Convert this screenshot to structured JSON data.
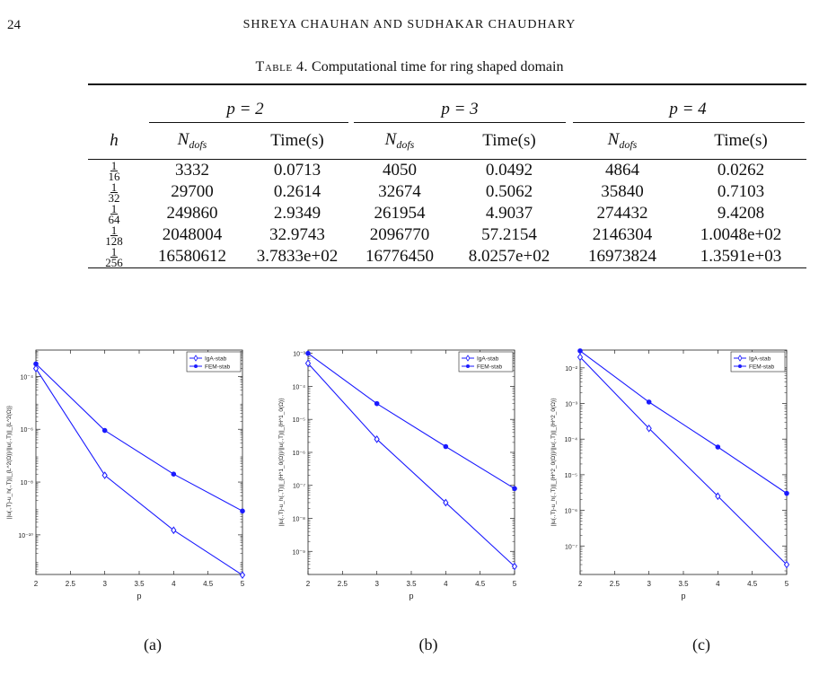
{
  "page": {
    "number": "24",
    "running_header": "SHREYA CHAUHAN AND SUDHAKAR CHAUDHARY"
  },
  "table": {
    "caption_label": "Table 4.",
    "caption_text": "Computational time for ring shaped domain",
    "row_header": "h",
    "groups": [
      "p = 2",
      "p = 3",
      "p = 4"
    ],
    "col_ndofs_main": "N",
    "col_ndofs_sub": "dofs",
    "col_time": "Time(s)",
    "rows": [
      {
        "h_num": "1",
        "h_den": "16",
        "cells": [
          "3332",
          "0.0713",
          "4050",
          "0.0492",
          "4864",
          "0.0262"
        ]
      },
      {
        "h_num": "1",
        "h_den": "32",
        "cells": [
          "29700",
          "0.2614",
          "32674",
          "0.5062",
          "35840",
          "0.7103"
        ]
      },
      {
        "h_num": "1",
        "h_den": "64",
        "cells": [
          "249860",
          "2.9349",
          "261954",
          "4.9037",
          "274432",
          "9.4208"
        ]
      },
      {
        "h_num": "1",
        "h_den": "128",
        "cells": [
          "2048004",
          "32.9743",
          "2096770",
          "57.2154",
          "2146304",
          "1.0048e+02"
        ]
      },
      {
        "h_num": "1",
        "h_den": "256",
        "cells": [
          "16580612",
          "3.7833e+02",
          "16776450",
          "8.0257e+02",
          "16973824",
          "1.3591e+03"
        ]
      }
    ]
  },
  "chart_data": [
    {
      "type": "line",
      "sublabel": "(a)",
      "xlabel": "p",
      "ylabel": "||u(.,T)-u_h(.,T)||_{L^2(Ω)}/||u(.,T)||_{L^2(Ω)}",
      "yscale": "log",
      "xlim": [
        2,
        5
      ],
      "ylim_exp": [
        -11.5,
        -3
      ],
      "x_ticks": [
        "2",
        "2.5",
        "3",
        "3.5",
        "4",
        "4.5",
        "5"
      ],
      "y_ticks": [
        {
          "exp": -4,
          "label": "10⁻⁴"
        },
        {
          "exp": -6,
          "label": "10⁻⁶"
        },
        {
          "exp": -8,
          "label": "10⁻⁸"
        },
        {
          "exp": -10,
          "label": "10⁻¹⁰"
        }
      ],
      "legend_position": "top-right",
      "x": [
        2,
        3,
        4,
        5
      ],
      "series": [
        {
          "name": "IgA-stab",
          "marker": "diamond",
          "y": [
            0.0002,
            1.8e-08,
            1.5e-10,
            3e-12
          ]
        },
        {
          "name": "FEM-stab",
          "marker": "dot",
          "y": [
            0.0003,
            9e-07,
            2e-08,
            8e-10
          ]
        }
      ]
    },
    {
      "type": "line",
      "sublabel": "(b)",
      "xlabel": "p",
      "ylabel": "||u(.,T)-u_h(.,T)||_{H^1_0(Ω)}/||u(.,T)||_{H^1_0(Ω)}",
      "yscale": "log",
      "xlim": [
        2,
        5
      ],
      "ylim_exp": [
        -9.7,
        -2.9
      ],
      "x_ticks": [
        "2",
        "2.5",
        "3",
        "3.5",
        "4",
        "4.5",
        "5"
      ],
      "y_ticks": [
        {
          "exp": -3,
          "label": "10⁻³"
        },
        {
          "exp": -4,
          "label": "10⁻⁴"
        },
        {
          "exp": -5,
          "label": "10⁻⁵"
        },
        {
          "exp": -6,
          "label": "10⁻⁶"
        },
        {
          "exp": -7,
          "label": "10⁻⁷"
        },
        {
          "exp": -8,
          "label": "10⁻⁸"
        },
        {
          "exp": -9,
          "label": "10⁻⁹"
        }
      ],
      "legend_position": "top-right",
      "x": [
        2,
        3,
        4,
        5
      ],
      "series": [
        {
          "name": "IgA-stab",
          "marker": "diamond",
          "y": [
            0.0005,
            2.5e-06,
            3e-08,
            3.5e-10
          ]
        },
        {
          "name": "FEM-stab",
          "marker": "dot",
          "y": [
            0.001,
            3e-05,
            1.5e-06,
            8e-08
          ]
        }
      ]
    },
    {
      "type": "line",
      "sublabel": "(c)",
      "xlabel": "p",
      "ylabel": "||u(.,T)-u_h(.,T)||_{H^2_0(Ω)}/||u(.,T)||_{H^2_0(Ω)}",
      "yscale": "log",
      "xlim": [
        2,
        5
      ],
      "ylim_exp": [
        -7.8,
        -1.5
      ],
      "x_ticks": [
        "2",
        "2.5",
        "3",
        "3.5",
        "4",
        "4.5",
        "5"
      ],
      "y_ticks": [
        {
          "exp": -2,
          "label": "10⁻²"
        },
        {
          "exp": -3,
          "label": "10⁻³"
        },
        {
          "exp": -4,
          "label": "10⁻⁴"
        },
        {
          "exp": -5,
          "label": "10⁻⁵"
        },
        {
          "exp": -6,
          "label": "10⁻⁶"
        },
        {
          "exp": -7,
          "label": "10⁻⁷"
        }
      ],
      "legend_position": "top-right",
      "x": [
        2,
        3,
        4,
        5
      ],
      "series": [
        {
          "name": "IgA-stab",
          "marker": "diamond",
          "y": [
            0.02,
            0.0002,
            2.5e-06,
            3e-08
          ]
        },
        {
          "name": "FEM-stab",
          "marker": "dot",
          "y": [
            0.03,
            0.0011,
            6e-05,
            3e-06
          ]
        }
      ]
    }
  ]
}
